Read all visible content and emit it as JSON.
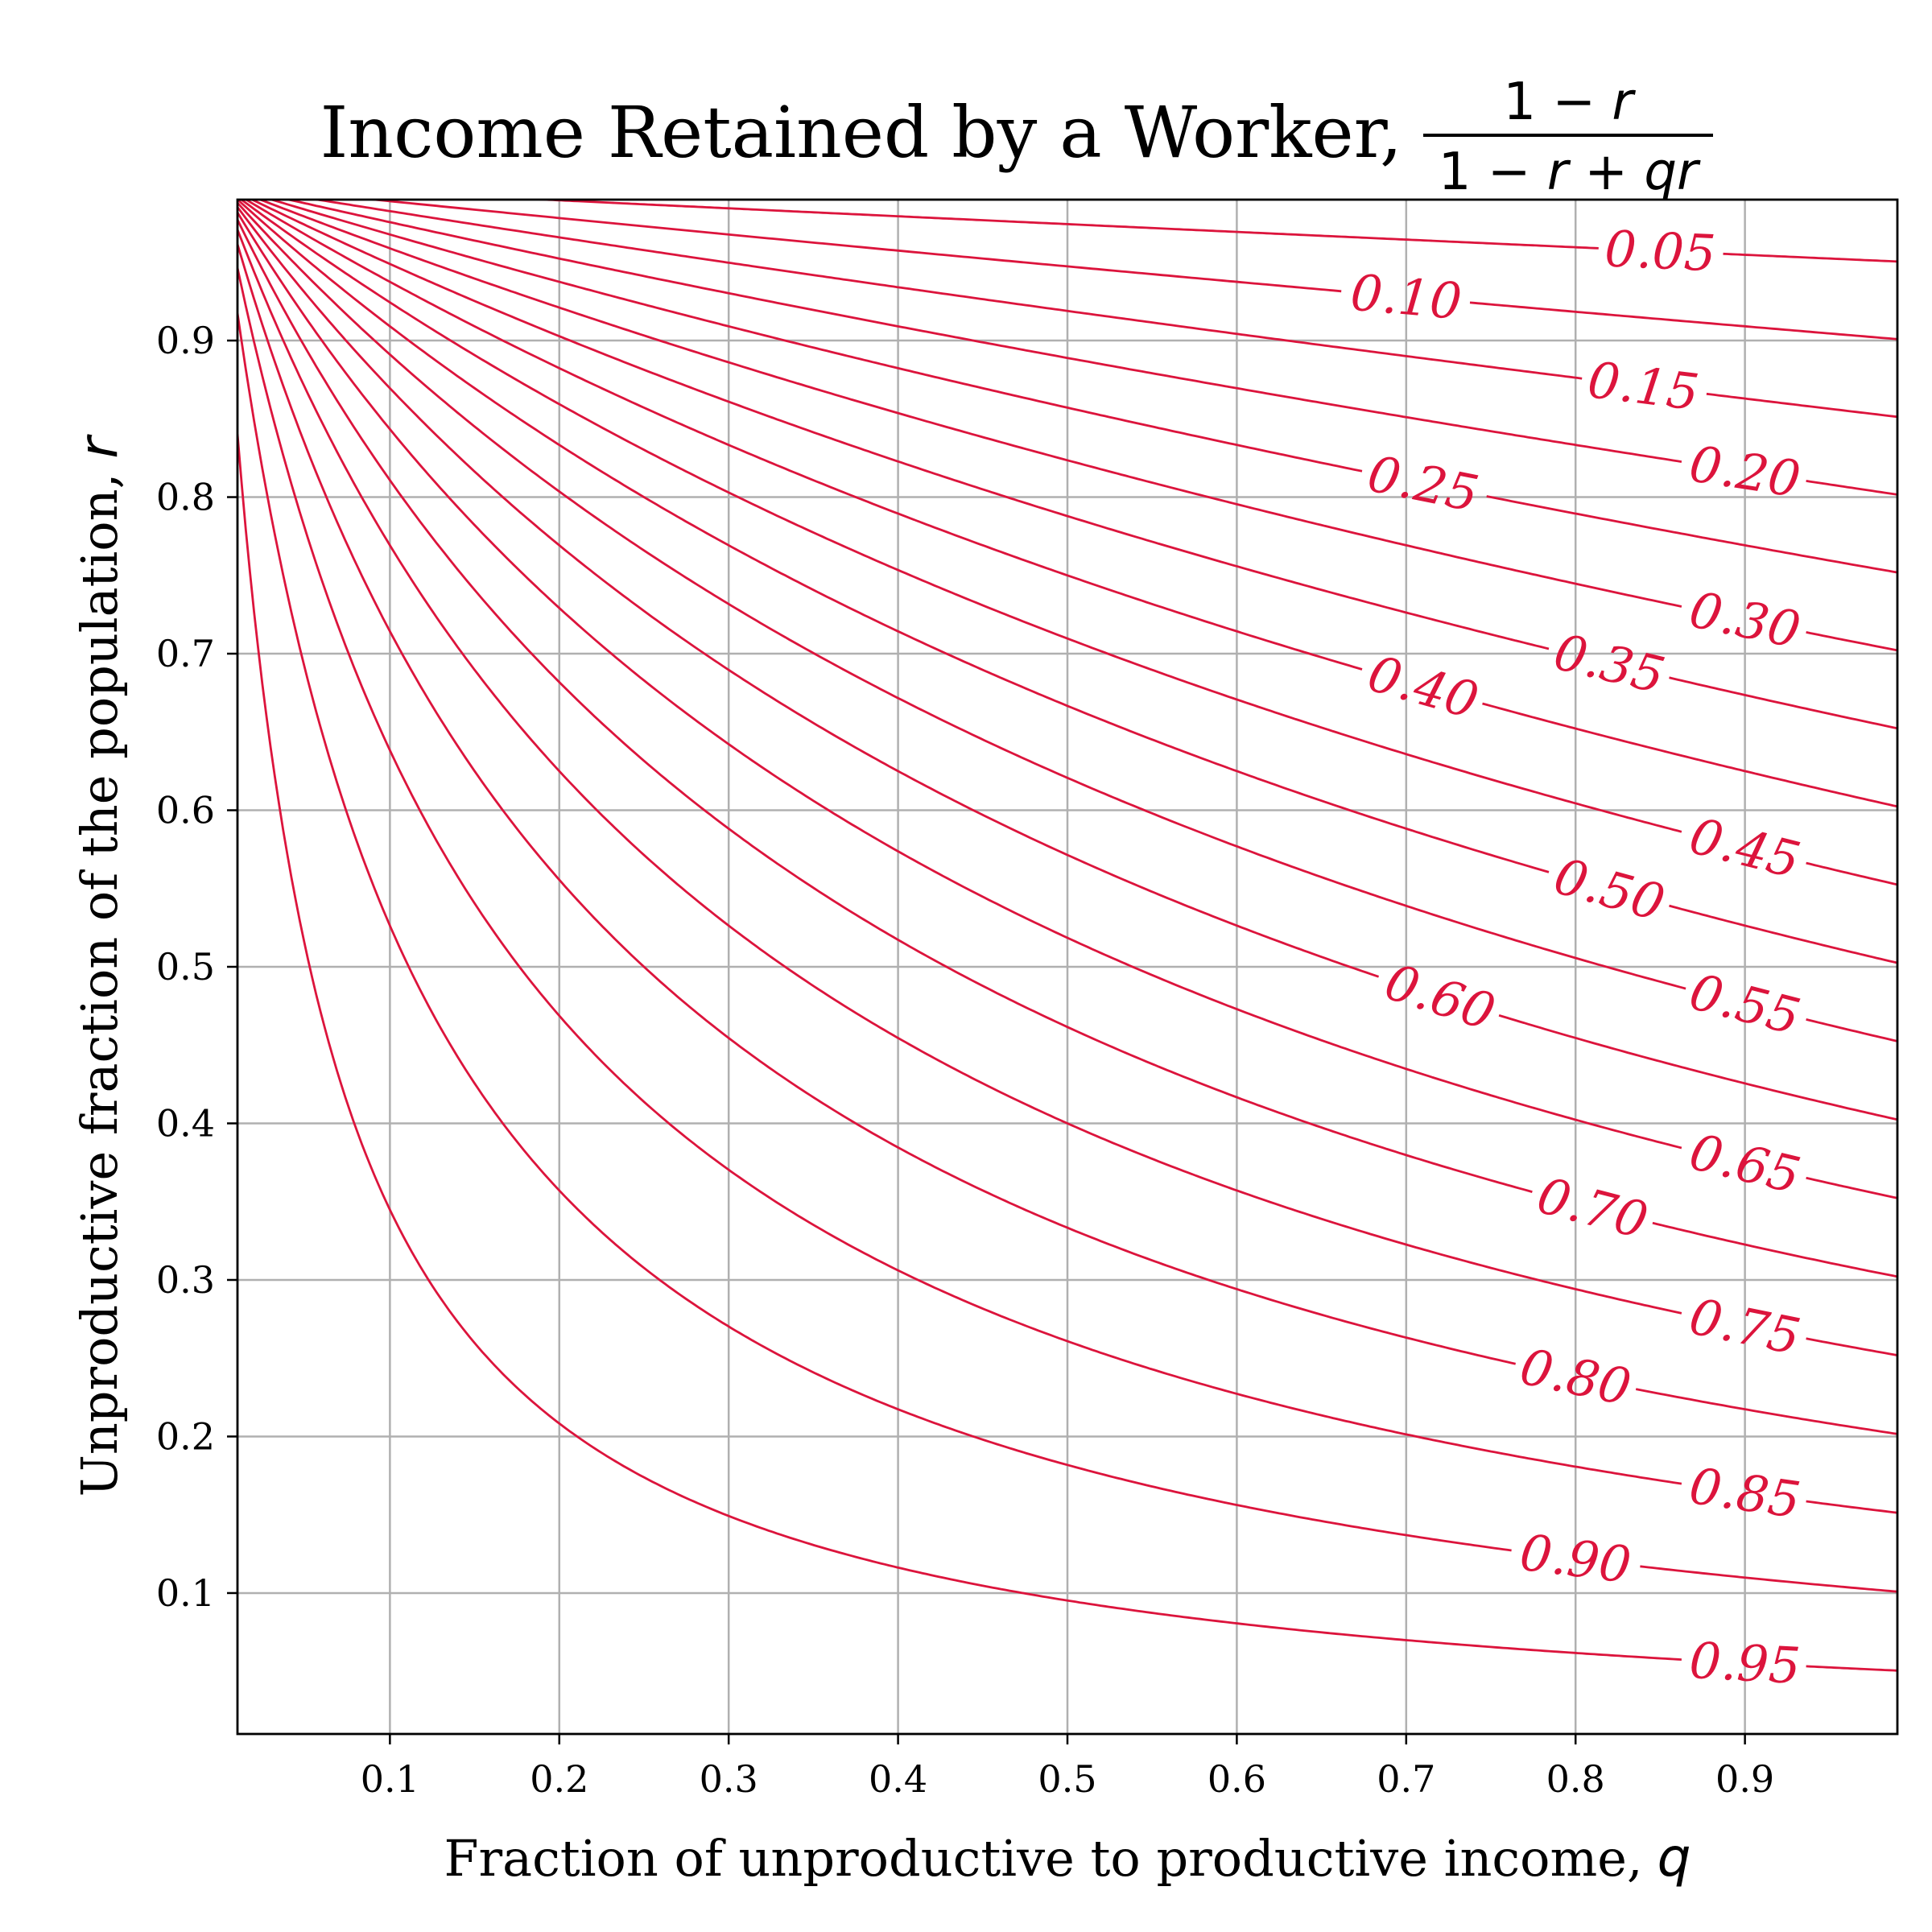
{
  "chart_data": {
    "type": "contour",
    "title": "Income Retained by a Worker,",
    "title_formula": {
      "numerator": [
        "1 − ",
        "r"
      ],
      "denominator": [
        "1 − ",
        "r",
        " + ",
        "qr"
      ]
    },
    "xlabel": "Fraction of unproductive to productive income,",
    "xlabel_symbol": "q",
    "ylabel": "Unproductive fraction of the population,",
    "ylabel_symbol": "r",
    "xlim": [
      0.01,
      0.99
    ],
    "ylim": [
      0.01,
      0.99
    ],
    "xticks": [
      0.1,
      0.2,
      0.3,
      0.4,
      0.5,
      0.6,
      0.7,
      0.8,
      0.9
    ],
    "yticks": [
      0.1,
      0.2,
      0.3,
      0.4,
      0.5,
      0.6,
      0.7,
      0.8,
      0.9
    ],
    "xtick_labels": [
      "0.1",
      "0.2",
      "0.3",
      "0.4",
      "0.5",
      "0.6",
      "0.7",
      "0.8",
      "0.9"
    ],
    "ytick_labels": [
      "0.1",
      "0.2",
      "0.3",
      "0.4",
      "0.5",
      "0.6",
      "0.7",
      "0.8",
      "0.9"
    ],
    "grid": true,
    "line_color": "#dc143c",
    "levels": [
      {
        "value": 0.05,
        "label": "0.05",
        "label_q": 0.85
      },
      {
        "value": 0.1,
        "label": "0.10",
        "label_q": 0.7
      },
      {
        "value": 0.15,
        "label": "0.15",
        "label_q": 0.84
      },
      {
        "value": 0.2,
        "label": "0.20",
        "label_q": 0.9
      },
      {
        "value": 0.25,
        "label": "0.25",
        "label_q": 0.71
      },
      {
        "value": 0.3,
        "label": "0.30",
        "label_q": 0.9
      },
      {
        "value": 0.35,
        "label": "0.35",
        "label_q": 0.82
      },
      {
        "value": 0.4,
        "label": "0.40",
        "label_q": 0.71
      },
      {
        "value": 0.45,
        "label": "0.45",
        "label_q": 0.9
      },
      {
        "value": 0.5,
        "label": "0.50",
        "label_q": 0.82
      },
      {
        "value": 0.55,
        "label": "0.55",
        "label_q": 0.9
      },
      {
        "value": 0.6,
        "label": "0.60",
        "label_q": 0.72
      },
      {
        "value": 0.65,
        "label": "0.65",
        "label_q": 0.9
      },
      {
        "value": 0.7,
        "label": "0.70",
        "label_q": 0.81
      },
      {
        "value": 0.75,
        "label": "0.75",
        "label_q": 0.9
      },
      {
        "value": 0.8,
        "label": "0.80",
        "label_q": 0.8
      },
      {
        "value": 0.85,
        "label": "0.85",
        "label_q": 0.9
      },
      {
        "value": 0.9,
        "label": "0.90",
        "label_q": 0.8
      },
      {
        "value": 0.95,
        "label": "0.95",
        "label_q": 0.9
      }
    ]
  }
}
